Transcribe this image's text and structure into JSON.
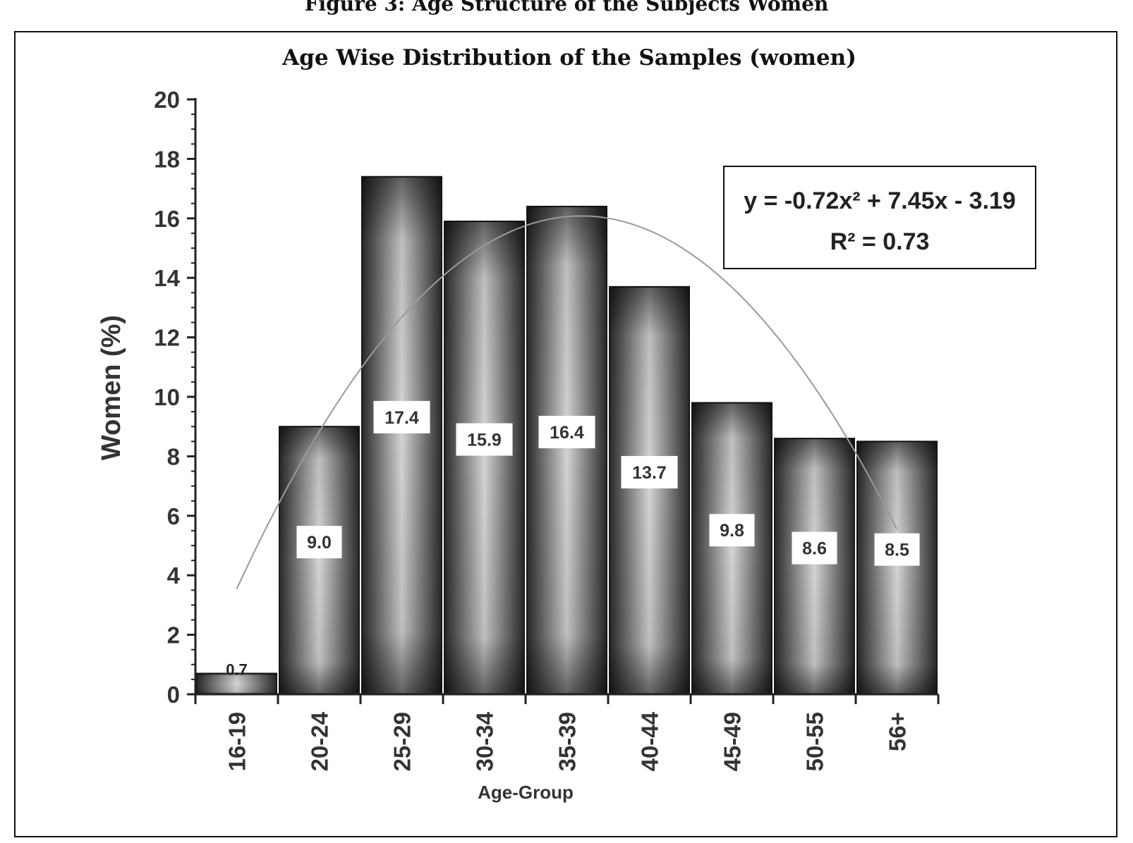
{
  "figure_caption": "Figure 3: Age Structure of the Subjects Women",
  "chart_data": {
    "type": "bar",
    "title": "Age Wise Distribution of the Samples (women)",
    "xlabel": "Age-Group",
    "ylabel": "Women (%)",
    "categories": [
      "16-19",
      "20-24",
      "25-29",
      "30-34",
      "35-39",
      "40-44",
      "45-49",
      "50-55",
      "56+"
    ],
    "values": [
      0.7,
      9.0,
      17.4,
      15.9,
      16.4,
      13.7,
      9.8,
      8.6,
      8.5
    ],
    "value_labels": [
      "0.7",
      "9.0",
      "17.4",
      "15.9",
      "16.4",
      "13.7",
      "9.8",
      "8.6",
      "8.5"
    ],
    "ylim": [
      0,
      20
    ],
    "yticks": [
      "0",
      "2",
      "4",
      "6",
      "8",
      "10",
      "12",
      "14",
      "16",
      "18",
      "20"
    ],
    "trendline": {
      "type": "polynomial",
      "coefficients": [
        -0.72,
        7.45,
        -3.19
      ],
      "equation": "y = -0.72x² + 7.45x - 3.19",
      "r_squared": "R² = 0.73"
    },
    "grid": false,
    "legend": "none"
  }
}
